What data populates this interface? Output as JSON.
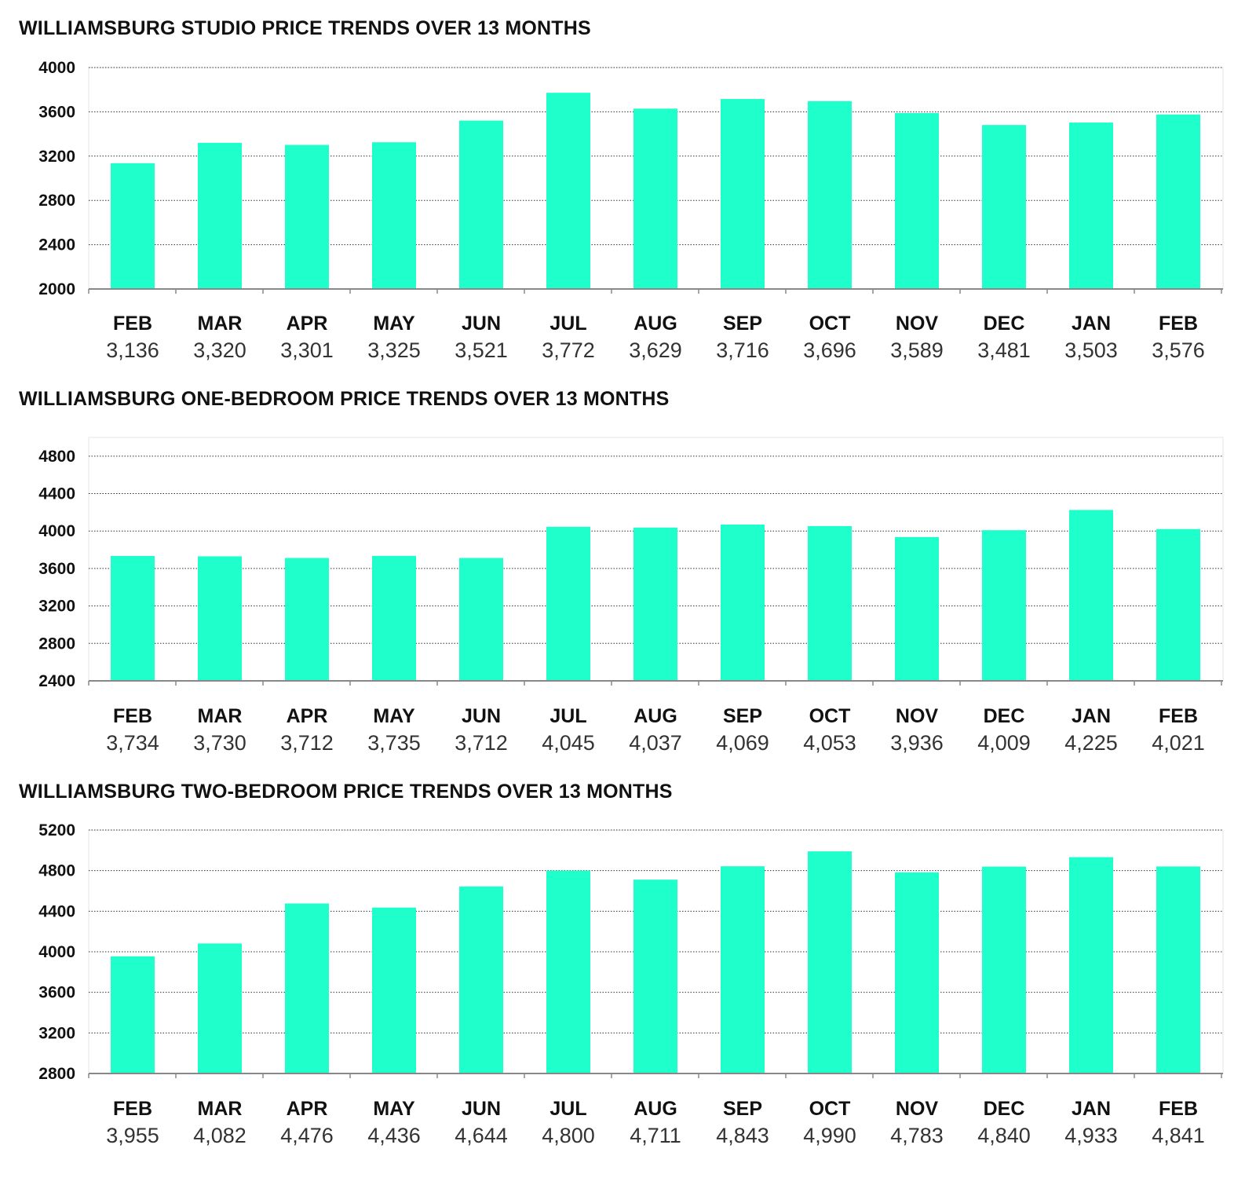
{
  "colors": {
    "bar": "#1EFFCB",
    "grid": "#333333",
    "axis": "#888888"
  },
  "chart_data": [
    {
      "type": "bar",
      "title": "WILLIAMSBURG STUDIO PRICE TRENDS OVER 13 MONTHS",
      "categories": [
        "FEB",
        "MAR",
        "APR",
        "MAY",
        "JUN",
        "JUL",
        "AUG",
        "SEP",
        "OCT",
        "NOV",
        "DEC",
        "JAN",
        "FEB"
      ],
      "values": [
        3136,
        3320,
        3301,
        3325,
        3521,
        3772,
        3629,
        3716,
        3696,
        3589,
        3481,
        3503,
        3576
      ],
      "value_labels": [
        "3,136",
        "3,320",
        "3,301",
        "3,325",
        "3,521",
        "3,772",
        "3,629",
        "3,716",
        "3,696",
        "3,589",
        "3,481",
        "3,503",
        "3,576"
      ],
      "yticks": [
        2000,
        2400,
        2800,
        3200,
        3600,
        4000
      ],
      "ylim": [
        2000,
        4000
      ],
      "xlabel": "",
      "ylabel": "",
      "grid": true
    },
    {
      "type": "bar",
      "title": "WILLIAMSBURG ONE-BEDROOM PRICE TRENDS OVER 13 MONTHS",
      "categories": [
        "FEB",
        "MAR",
        "APR",
        "MAY",
        "JUN",
        "JUL",
        "AUG",
        "SEP",
        "OCT",
        "NOV",
        "DEC",
        "JAN",
        "FEB"
      ],
      "values": [
        3734,
        3730,
        3712,
        3735,
        3712,
        4045,
        4037,
        4069,
        4053,
        3936,
        4009,
        4225,
        4021
      ],
      "value_labels": [
        "3,734",
        "3,730",
        "3,712",
        "3,735",
        "3,712",
        "4,045",
        "4,037",
        "4,069",
        "4,053",
        "3,936",
        "4,009",
        "4,225",
        "4,021"
      ],
      "yticks": [
        2400,
        2800,
        3200,
        3600,
        4000,
        4400,
        4800
      ],
      "ylim": [
        2400,
        5000
      ],
      "xlabel": "",
      "ylabel": "",
      "grid": true
    },
    {
      "type": "bar",
      "title": "WILLIAMSBURG TWO-BEDROOM PRICE TRENDS OVER 13 MONTHS",
      "categories": [
        "FEB",
        "MAR",
        "APR",
        "MAY",
        "JUN",
        "JUL",
        "AUG",
        "SEP",
        "OCT",
        "NOV",
        "DEC",
        "JAN",
        "FEB"
      ],
      "values": [
        3955,
        4082,
        4476,
        4436,
        4644,
        4800,
        4711,
        4843,
        4990,
        4783,
        4840,
        4933,
        4841
      ],
      "value_labels": [
        "3,955",
        "4,082",
        "4,476",
        "4,436",
        "4,644",
        "4,800",
        "4,711",
        "4,843",
        "4,990",
        "4,783",
        "4,840",
        "4,933",
        "4,841"
      ],
      "yticks": [
        2800,
        3200,
        3600,
        4000,
        4400,
        4800,
        5200
      ],
      "ylim": [
        2800,
        5200
      ],
      "xlabel": "",
      "ylabel": "",
      "grid": true
    }
  ]
}
